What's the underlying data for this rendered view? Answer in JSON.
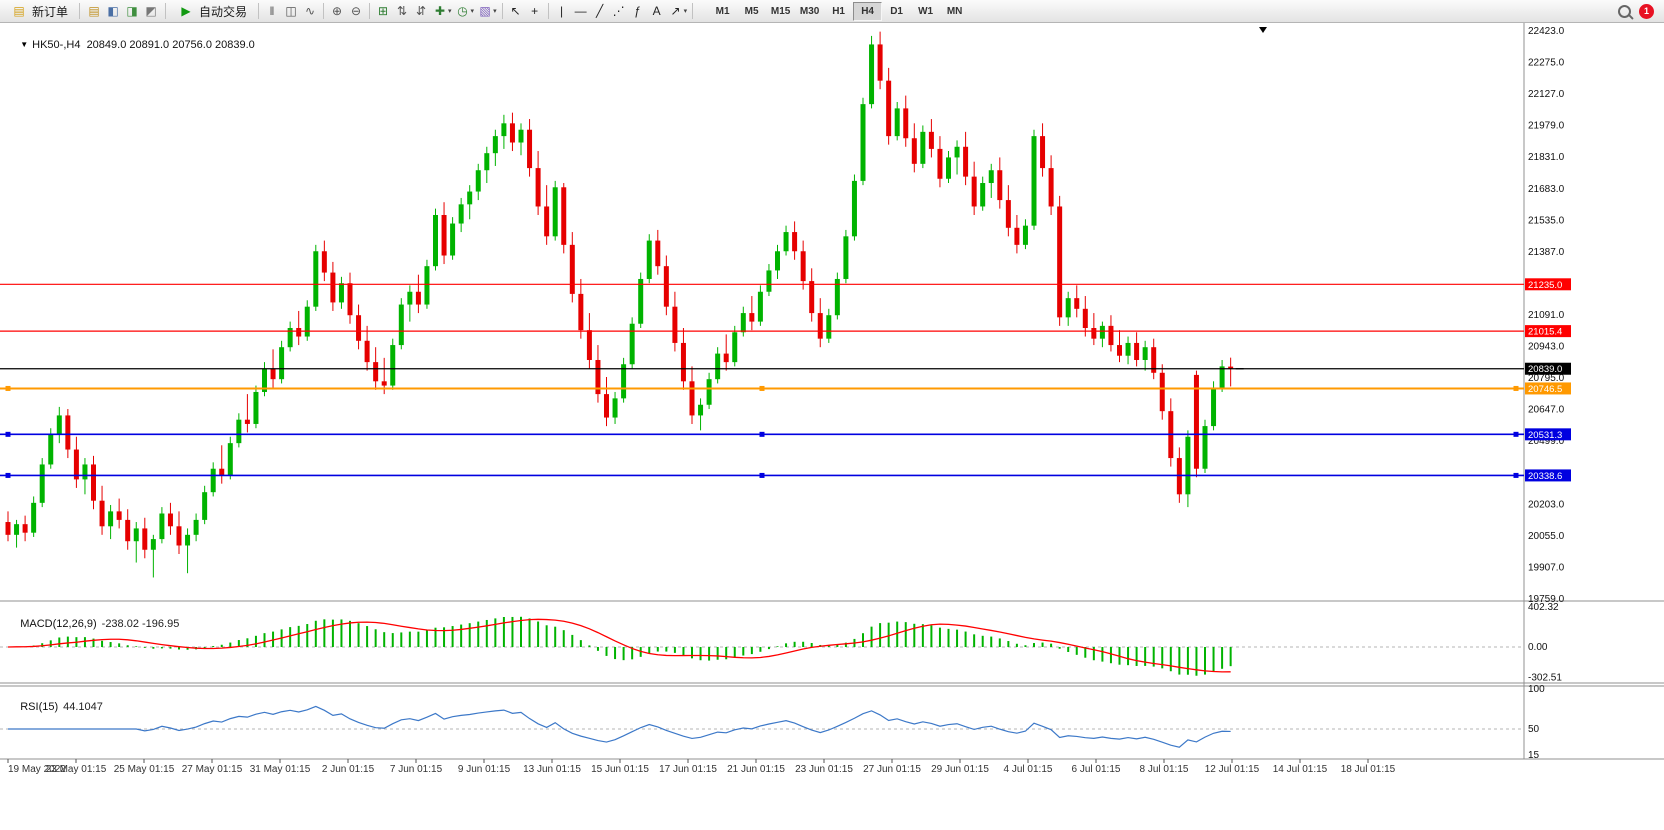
{
  "toolbar": {
    "new_order_label": "新订单",
    "new_order_glyph": "▤",
    "auto_trading_label": "自动交易",
    "play_glyph": "▶",
    "pre_icons": [
      {
        "name": "market-watch-icon",
        "glyph": "▤",
        "color": "#c09020"
      },
      {
        "name": "data-window-icon",
        "glyph": "◧",
        "color": "#4a6fa5"
      },
      {
        "name": "navigator-icon",
        "glyph": "◨",
        "color": "#3f8f3f"
      },
      {
        "name": "terminal-icon",
        "glyph": "◩",
        "color": "#777777"
      }
    ],
    "main_icons": [
      {
        "kind": "sep"
      },
      {
        "name": "bar-chart-icon",
        "glyph": "‖",
        "color": "#555555"
      },
      {
        "name": "candlestick-chart-icon",
        "glyph": "◫",
        "color": "#555555"
      },
      {
        "name": "line-chart-icon",
        "glyph": "∿",
        "color": "#555555"
      },
      {
        "kind": "sep"
      },
      {
        "name": "zoom-in-icon",
        "glyph": "⊕",
        "color": "#555555"
      },
      {
        "name": "zoom-out-icon",
        "glyph": "⊖",
        "color": "#555555"
      },
      {
        "kind": "sep"
      },
      {
        "name": "tile-windows-icon",
        "glyph": "⊞",
        "color": "#2e7d32"
      },
      {
        "name": "arrange-windows-icon",
        "glyph": "⇅",
        "color": "#555555"
      },
      {
        "name": "chart-shift-icon",
        "glyph": "⇵",
        "color": "#555555"
      },
      {
        "name": "new-chart-icon",
        "glyph": "✚",
        "color": "#2e7d32",
        "caret": true
      },
      {
        "name": "period-selector-icon",
        "glyph": "◷",
        "color": "#2e7d32",
        "caret": true
      },
      {
        "name": "template-icon",
        "glyph": "▧",
        "color": "#7b5dbb",
        "caret": true
      },
      {
        "kind": "sep"
      },
      {
        "name": "cursor-arrow-icon",
        "glyph": "↖",
        "color": "#222222"
      },
      {
        "name": "crosshair-icon",
        "glyph": "+",
        "color": "#222222"
      },
      {
        "kind": "sep"
      },
      {
        "name": "vertical-line-icon",
        "glyph": "|",
        "color": "#222222"
      },
      {
        "name": "horizontal-line-icon",
        "glyph": "—",
        "color": "#222222"
      },
      {
        "name": "trendline-icon",
        "glyph": "╱",
        "color": "#222222"
      },
      {
        "name": "equidistant-channel-icon",
        "glyph": "⋰",
        "color": "#222222"
      },
      {
        "name": "fibonacci-icon",
        "glyph": "ƒ",
        "color": "#222222"
      },
      {
        "name": "text-label-icon",
        "glyph": "A",
        "color": "#222222"
      },
      {
        "name": "arrows-tool-icon",
        "glyph": "↗",
        "color": "#222222",
        "caret": true
      },
      {
        "kind": "sep"
      }
    ],
    "timeframes": {
      "items": [
        "M1",
        "M5",
        "M15",
        "M30",
        "H1",
        "H4",
        "D1",
        "W1",
        "MN"
      ],
      "active": "H4"
    },
    "notification_count": "1"
  },
  "chart": {
    "info_line": "HK50-,H4  20849.0 20891.0 20756.0 20839.0",
    "nav_arrow": "▼",
    "colors": {
      "up": "#00b300",
      "down": "#e60000",
      "macd_hist": "#00b300",
      "macd_signal": "#ff0000",
      "rsi": "#3c78c8"
    },
    "price_axis_labels": [
      "22423.0",
      "22275.0",
      "22127.0",
      "21979.0",
      "21831.0",
      "21683.0",
      "21535.0",
      "21387.0",
      "21091.0",
      "20943.0",
      "20795.0",
      "20647.0",
      "20499.0",
      "20203.0",
      "20055.0",
      "19907.0",
      "19759.0"
    ],
    "hlines": [
      {
        "value": 21235.0,
        "label": "21235.0",
        "color": "#ff0000",
        "width": 1.2,
        "handles": false
      },
      {
        "value": 21015.4,
        "label": "21015.4",
        "color": "#ff0000",
        "width": 1.2,
        "handles": false
      },
      {
        "value": 20839.0,
        "label": "20839.0",
        "color": "#000000",
        "width": 1.2,
        "handles": false
      },
      {
        "value": 20746.5,
        "label": "20746.5",
        "color": "#ff9900",
        "width": 2,
        "handles": true
      },
      {
        "value": 20531.3,
        "label": "20531.3",
        "color": "#0000e0",
        "width": 1.6,
        "handles": true
      },
      {
        "value": 20338.6,
        "label": "20338.6",
        "color": "#0000e0",
        "width": 1.6,
        "handles": true
      }
    ]
  },
  "indicators": {
    "macd": {
      "label": "MACD(12,26,9)",
      "values": "-238.02 -196.95",
      "axis": [
        "402.32",
        "0.00",
        "-302.51"
      ],
      "scale_max": 440,
      "scale_min": -340
    },
    "rsi": {
      "label": "RSI(15)",
      "value": "44.1047",
      "axis": [
        "100",
        "50",
        "15"
      ],
      "period": 15,
      "level": 50,
      "scale_max": 100,
      "scale_min": 15
    }
  },
  "time_axis": {
    "labels": [
      "19 May 2022",
      "23 May 01:15",
      "25 May 01:15",
      "27 May 01:15",
      "31 May 01:15",
      "2 Jun 01:15",
      "7 Jun 01:15",
      "9 Jun 01:15",
      "13 Jun 01:15",
      "15 Jun 01:15",
      "17 Jun 01:15",
      "21 Jun 01:15",
      "23 Jun 01:15",
      "27 Jun 01:15",
      "29 Jun 01:15",
      "4 Jul 01:15",
      "6 Jul 01:15",
      "8 Jul 01:15",
      "12 Jul 01:15",
      "14 Jul 01:15",
      "18 Jul 01:15"
    ]
  },
  "chart_data": {
    "type": "candlestick",
    "symbol": "HK50-",
    "timeframe": "H4",
    "visible_price_range": [
      19759,
      22423
    ],
    "last_ohlc": {
      "open": 20849.0,
      "high": 20891.0,
      "low": 20756.0,
      "close": 20839.0
    },
    "horizontal_levels": [
      21235.0,
      21015.4,
      20839.0,
      20746.5,
      20531.3,
      20338.6
    ],
    "indicators": [
      {
        "name": "MACD",
        "params": [
          12,
          26,
          9
        ],
        "current": [
          -238.02,
          -196.95
        ]
      },
      {
        "name": "RSI",
        "params": [
          15
        ],
        "current": 44.1047
      }
    ],
    "candles_ohlc": [
      [
        20120,
        20170,
        20030,
        20060
      ],
      [
        20060,
        20130,
        20000,
        20110
      ],
      [
        20110,
        20150,
        20030,
        20070
      ],
      [
        20070,
        20240,
        20050,
        20210
      ],
      [
        20210,
        20420,
        20190,
        20390
      ],
      [
        20390,
        20560,
        20370,
        20530
      ],
      [
        20530,
        20660,
        20490,
        20620
      ],
      [
        20620,
        20650,
        20420,
        20460
      ],
      [
        20460,
        20520,
        20280,
        20320
      ],
      [
        20320,
        20420,
        20250,
        20390
      ],
      [
        20390,
        20430,
        20180,
        20220
      ],
      [
        20220,
        20290,
        20060,
        20100
      ],
      [
        20100,
        20200,
        20040,
        20170
      ],
      [
        20170,
        20230,
        20090,
        20130
      ],
      [
        20130,
        20180,
        19990,
        20030
      ],
      [
        20030,
        20120,
        19930,
        20090
      ],
      [
        20090,
        20140,
        19950,
        19990
      ],
      [
        19990,
        20060,
        19860,
        20040
      ],
      [
        20040,
        20190,
        20020,
        20160
      ],
      [
        20160,
        20210,
        20060,
        20100
      ],
      [
        20100,
        20170,
        19970,
        20010
      ],
      [
        20010,
        20090,
        19880,
        20060
      ],
      [
        20060,
        20160,
        20030,
        20130
      ],
      [
        20130,
        20290,
        20110,
        20260
      ],
      [
        20260,
        20400,
        20240,
        20370
      ],
      [
        20370,
        20480,
        20300,
        20340
      ],
      [
        20340,
        20520,
        20320,
        20490
      ],
      [
        20490,
        20630,
        20470,
        20600
      ],
      [
        20600,
        20720,
        20540,
        20580
      ],
      [
        20580,
        20760,
        20560,
        20730
      ],
      [
        20730,
        20870,
        20710,
        20840
      ],
      [
        20840,
        20930,
        20750,
        20790
      ],
      [
        20790,
        20970,
        20770,
        20940
      ],
      [
        20940,
        21060,
        20920,
        21030
      ],
      [
        21030,
        21110,
        20950,
        20990
      ],
      [
        20990,
        21160,
        20970,
        21130
      ],
      [
        21130,
        21420,
        21110,
        21390
      ],
      [
        21390,
        21440,
        21250,
        21290
      ],
      [
        21290,
        21340,
        21110,
        21150
      ],
      [
        21150,
        21270,
        21120,
        21240
      ],
      [
        21240,
        21290,
        21050,
        21090
      ],
      [
        21090,
        21140,
        20930,
        20970
      ],
      [
        20970,
        21040,
        20830,
        20870
      ],
      [
        20870,
        20940,
        20740,
        20780
      ],
      [
        20780,
        20890,
        20720,
        20760
      ],
      [
        20760,
        20980,
        20740,
        20950
      ],
      [
        20950,
        21170,
        20930,
        21140
      ],
      [
        21140,
        21230,
        21060,
        21200
      ],
      [
        21200,
        21280,
        21100,
        21140
      ],
      [
        21140,
        21350,
        21120,
        21320
      ],
      [
        21320,
        21590,
        21300,
        21560
      ],
      [
        21560,
        21620,
        21330,
        21370
      ],
      [
        21370,
        21550,
        21350,
        21520
      ],
      [
        21520,
        21640,
        21480,
        21610
      ],
      [
        21610,
        21700,
        21540,
        21670
      ],
      [
        21670,
        21800,
        21630,
        21770
      ],
      [
        21770,
        21880,
        21710,
        21850
      ],
      [
        21850,
        21960,
        21790,
        21930
      ],
      [
        21930,
        22030,
        21870,
        21990
      ],
      [
        21990,
        22040,
        21860,
        21900
      ],
      [
        21900,
        21990,
        21840,
        21960
      ],
      [
        21960,
        22010,
        21740,
        21780
      ],
      [
        21780,
        21860,
        21560,
        21600
      ],
      [
        21600,
        21700,
        21420,
        21460
      ],
      [
        21460,
        21720,
        21440,
        21690
      ],
      [
        21690,
        21710,
        21380,
        21420
      ],
      [
        21420,
        21480,
        21150,
        21190
      ],
      [
        21190,
        21260,
        20980,
        21020
      ],
      [
        21020,
        21100,
        20840,
        20880
      ],
      [
        20880,
        20950,
        20680,
        20720
      ],
      [
        20720,
        20800,
        20570,
        20610
      ],
      [
        20610,
        20730,
        20580,
        20700
      ],
      [
        20700,
        20890,
        20680,
        20860
      ],
      [
        20860,
        21080,
        20840,
        21050
      ],
      [
        21050,
        21290,
        21030,
        21260
      ],
      [
        21260,
        21470,
        21240,
        21440
      ],
      [
        21440,
        21490,
        21280,
        21320
      ],
      [
        21320,
        21370,
        21090,
        21130
      ],
      [
        21130,
        21200,
        20920,
        20960
      ],
      [
        20960,
        21030,
        20740,
        20780
      ],
      [
        20780,
        20850,
        20580,
        20620
      ],
      [
        20620,
        20700,
        20550,
        20670
      ],
      [
        20670,
        20820,
        20650,
        20790
      ],
      [
        20790,
        20940,
        20770,
        20910
      ],
      [
        20910,
        21000,
        20830,
        20870
      ],
      [
        20870,
        21040,
        20850,
        21010
      ],
      [
        21010,
        21130,
        20990,
        21100
      ],
      [
        21100,
        21180,
        21020,
        21060
      ],
      [
        21060,
        21230,
        21040,
        21200
      ],
      [
        21200,
        21330,
        21180,
        21300
      ],
      [
        21300,
        21420,
        21260,
        21390
      ],
      [
        21390,
        21510,
        21370,
        21480
      ],
      [
        21480,
        21530,
        21350,
        21390
      ],
      [
        21390,
        21440,
        21210,
        21250
      ],
      [
        21250,
        21310,
        21060,
        21100
      ],
      [
        21100,
        21170,
        20940,
        20980
      ],
      [
        20980,
        21120,
        20960,
        21090
      ],
      [
        21090,
        21290,
        21070,
        21260
      ],
      [
        21260,
        21490,
        21240,
        21460
      ],
      [
        21460,
        21750,
        21440,
        21720
      ],
      [
        21720,
        22110,
        21700,
        22080
      ],
      [
        22080,
        22400,
        22060,
        22360
      ],
      [
        22360,
        22420,
        22150,
        22190
      ],
      [
        22190,
        22250,
        21890,
        21930
      ],
      [
        21930,
        22090,
        21910,
        22060
      ],
      [
        22060,
        22120,
        21880,
        21920
      ],
      [
        21920,
        21990,
        21760,
        21800
      ],
      [
        21800,
        21980,
        21780,
        21950
      ],
      [
        21950,
        22010,
        21830,
        21870
      ],
      [
        21870,
        21930,
        21690,
        21730
      ],
      [
        21730,
        21860,
        21710,
        21830
      ],
      [
        21830,
        21910,
        21750,
        21880
      ],
      [
        21880,
        21950,
        21700,
        21740
      ],
      [
        21740,
        21810,
        21560,
        21600
      ],
      [
        21600,
        21740,
        21580,
        21710
      ],
      [
        21710,
        21800,
        21640,
        21770
      ],
      [
        21770,
        21830,
        21590,
        21630
      ],
      [
        21630,
        21700,
        21460,
        21500
      ],
      [
        21500,
        21560,
        21380,
        21420
      ],
      [
        21420,
        21540,
        21400,
        21510
      ],
      [
        21510,
        21960,
        21490,
        21930
      ],
      [
        21930,
        21990,
        21740,
        21780
      ],
      [
        21780,
        21840,
        21560,
        21600
      ],
      [
        21600,
        21650,
        21040,
        21080
      ],
      [
        21080,
        21200,
        21040,
        21170
      ],
      [
        21170,
        21230,
        21080,
        21120
      ],
      [
        21120,
        21180,
        20990,
        21030
      ],
      [
        21030,
        21100,
        20950,
        20980
      ],
      [
        20980,
        21060,
        20940,
        21040
      ],
      [
        21040,
        21090,
        20920,
        20950
      ],
      [
        20950,
        21020,
        20870,
        20900
      ],
      [
        20900,
        20990,
        20860,
        20960
      ],
      [
        20960,
        21010,
        20850,
        20880
      ],
      [
        20880,
        20970,
        20830,
        20940
      ],
      [
        20940,
        20980,
        20790,
        20820
      ],
      [
        20820,
        20860,
        20600,
        20640
      ],
      [
        20640,
        20700,
        20380,
        20420
      ],
      [
        20420,
        20470,
        20210,
        20250
      ],
      [
        20250,
        20550,
        20190,
        20520
      ],
      [
        20810,
        20830,
        20330,
        20370
      ],
      [
        20370,
        20600,
        20350,
        20570
      ],
      [
        20570,
        20780,
        20550,
        20750
      ],
      [
        20750,
        20880,
        20730,
        20850
      ],
      [
        20849,
        20891,
        20756,
        20839
      ]
    ]
  }
}
